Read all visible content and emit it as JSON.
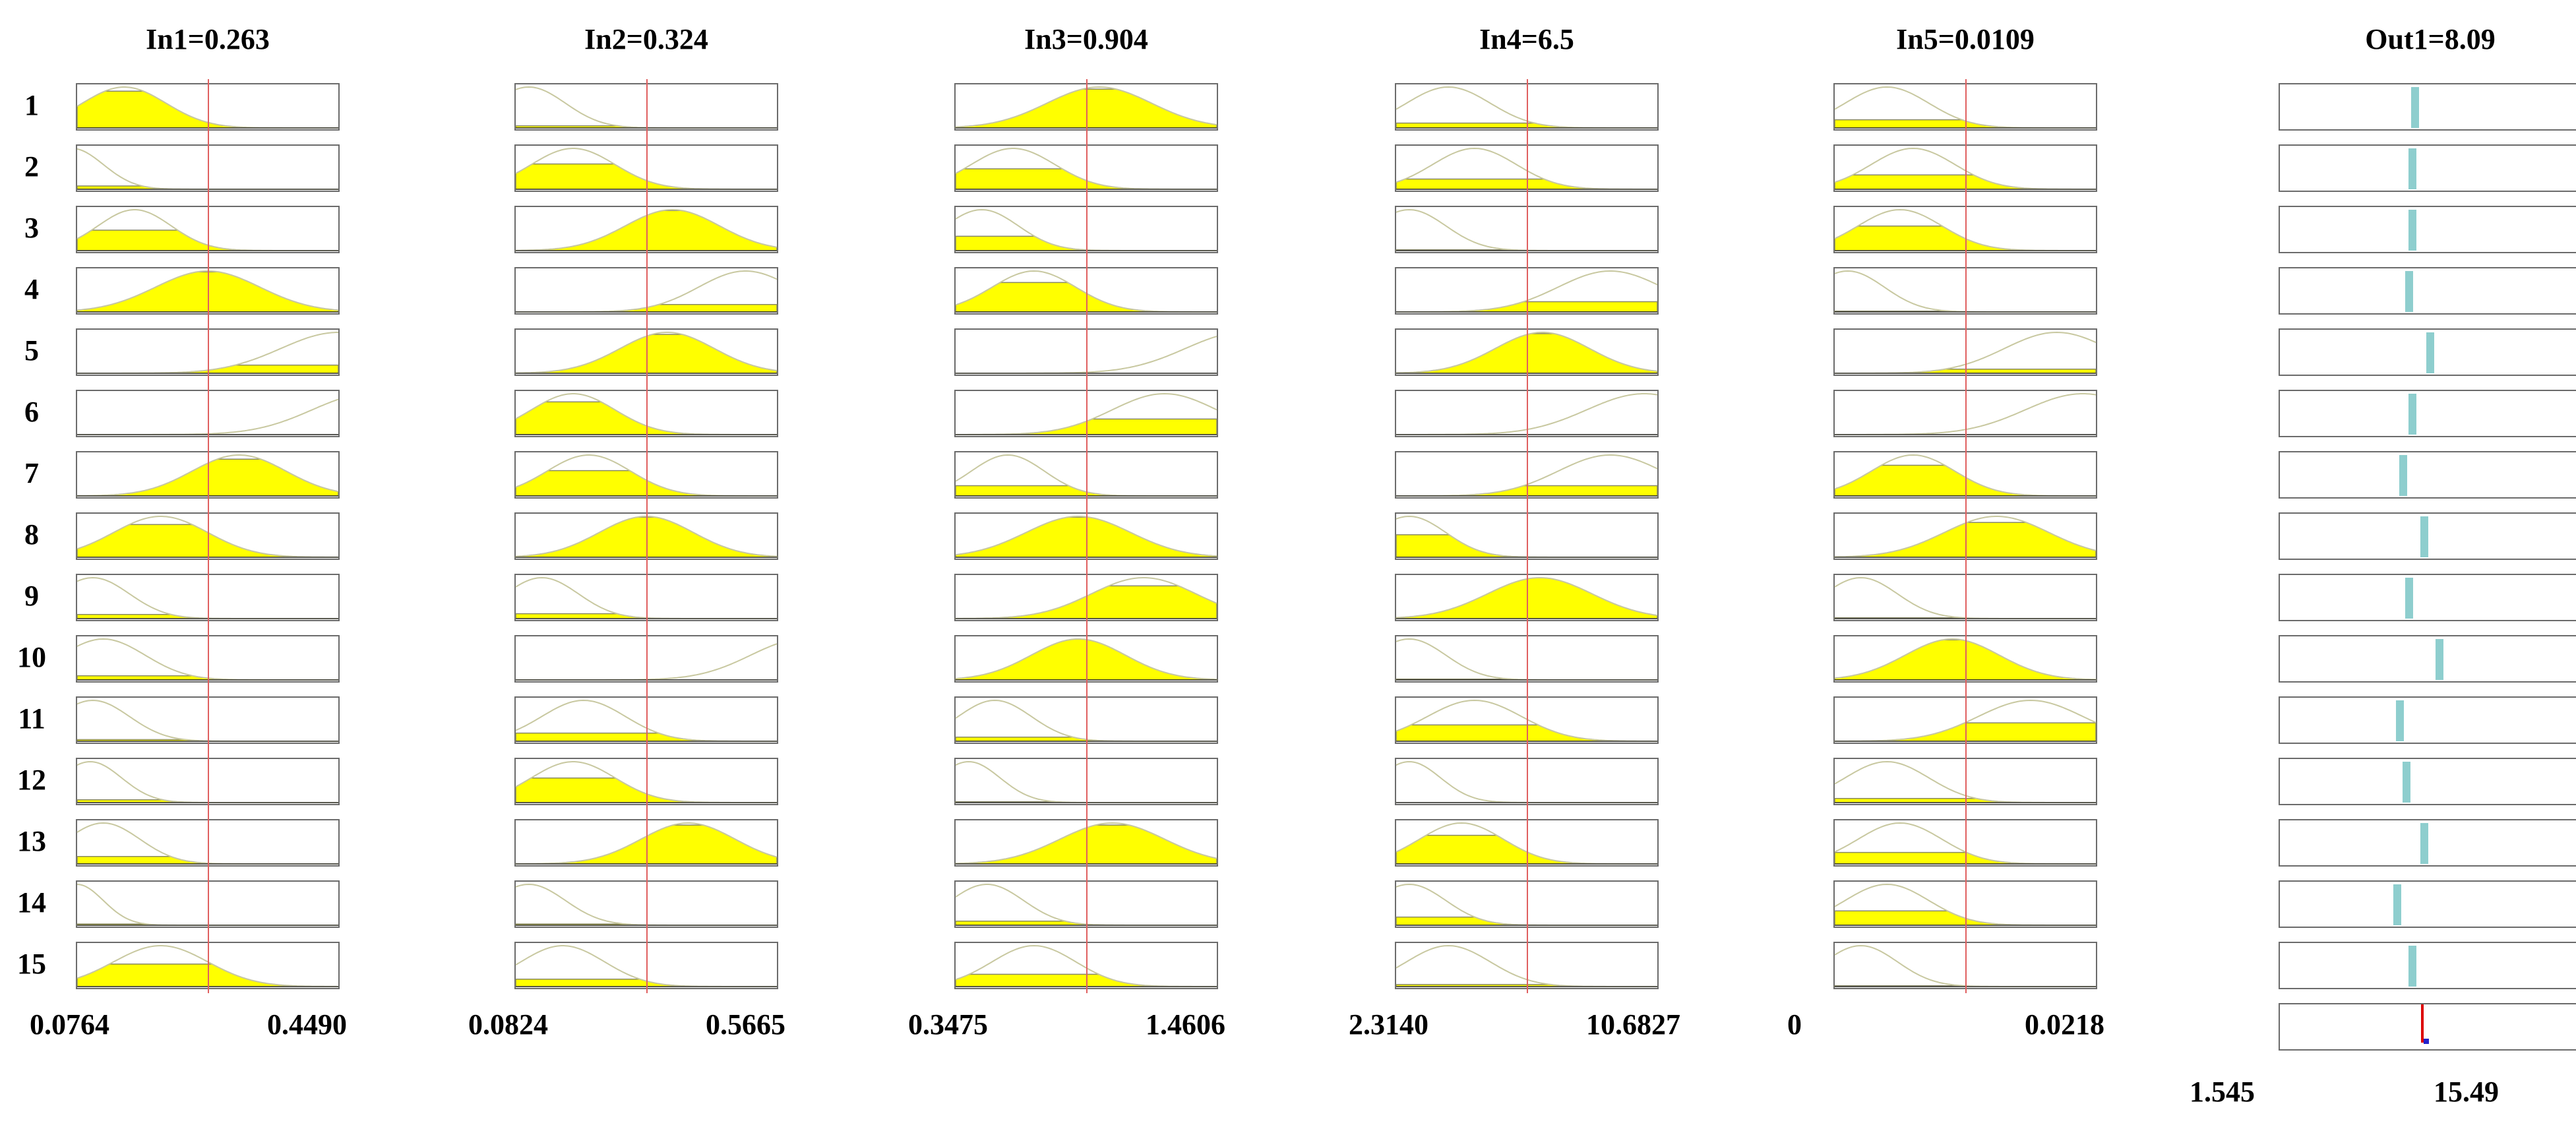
{
  "inputs": [
    {
      "title": "In1=0.263",
      "min_label": "0.0764",
      "max_label": "0.4490",
      "value_fraction": 0.5,
      "rows": [
        {
          "mf": [
            0.18,
            0.16
          ],
          "fire": 0.9
        },
        {
          "mf": [
            -0.02,
            0.12
          ],
          "fire": 0.08
        },
        {
          "mf": [
            0.22,
            0.14
          ],
          "fire": 0.5
        },
        {
          "mf": [
            0.5,
            0.2
          ],
          "fire": 0.98
        },
        {
          "mf": [
            1.0,
            0.22
          ],
          "fire": 0.2
        },
        {
          "mf": [
            1.12,
            0.22
          ],
          "fire": 0.0
        },
        {
          "mf": [
            0.62,
            0.18
          ],
          "fire": 0.9
        },
        {
          "mf": [
            0.32,
            0.18
          ],
          "fire": 0.8
        },
        {
          "mf": [
            0.06,
            0.14
          ],
          "fire": 0.1
        },
        {
          "mf": [
            0.1,
            0.16
          ],
          "fire": 0.1
        },
        {
          "mf": [
            0.06,
            0.14
          ],
          "fire": 0.04
        },
        {
          "mf": [
            0.05,
            0.12
          ],
          "fire": 0.07
        },
        {
          "mf": [
            0.1,
            0.14
          ],
          "fire": 0.18
        },
        {
          "mf": [
            0.0,
            0.1
          ],
          "fire": 0.03
        },
        {
          "mf": [
            0.32,
            0.18
          ],
          "fire": 0.55
        }
      ]
    },
    {
      "title": "In2=0.324",
      "min_label": "0.0824",
      "max_label": "0.5665",
      "value_fraction": 0.5,
      "rows": [
        {
          "mf": [
            0.05,
            0.14
          ],
          "fire": 0.05
        },
        {
          "mf": [
            0.22,
            0.16
          ],
          "fire": 0.62
        },
        {
          "mf": [
            0.6,
            0.18
          ],
          "fire": 0.98
        },
        {
          "mf": [
            0.88,
            0.18
          ],
          "fire": 0.18
        },
        {
          "mf": [
            0.58,
            0.18
          ],
          "fire": 0.95
        },
        {
          "mf": [
            0.22,
            0.16
          ],
          "fire": 0.8
        },
        {
          "mf": [
            0.28,
            0.16
          ],
          "fire": 0.62
        },
        {
          "mf": [
            0.5,
            0.18
          ],
          "fire": 0.98
        },
        {
          "mf": [
            0.1,
            0.14
          ],
          "fire": 0.12
        },
        {
          "mf": [
            1.1,
            0.2
          ],
          "fire": 0.0
        },
        {
          "mf": [
            0.26,
            0.16
          ],
          "fire": 0.2
        },
        {
          "mf": [
            0.22,
            0.16
          ],
          "fire": 0.6
        },
        {
          "mf": [
            0.66,
            0.18
          ],
          "fire": 0.95
        },
        {
          "mf": [
            0.05,
            0.14
          ],
          "fire": 0.03
        },
        {
          "mf": [
            0.18,
            0.16
          ],
          "fire": 0.18
        }
      ]
    },
    {
      "title": "In3=0.904",
      "min_label": "0.3475",
      "max_label": "1.4606",
      "value_fraction": 0.5,
      "rows": [
        {
          "mf": [
            0.55,
            0.2
          ],
          "fire": 0.95
        },
        {
          "mf": [
            0.22,
            0.16
          ],
          "fire": 0.5
        },
        {
          "mf": [
            0.1,
            0.14
          ],
          "fire": 0.35
        },
        {
          "mf": [
            0.3,
            0.16
          ],
          "fire": 0.72
        },
        {
          "mf": [
            1.1,
            0.22
          ],
          "fire": 0.0
        },
        {
          "mf": [
            0.8,
            0.2
          ],
          "fire": 0.38
        },
        {
          "mf": [
            0.2,
            0.14
          ],
          "fire": 0.25
        },
        {
          "mf": [
            0.47,
            0.2
          ],
          "fire": 0.98
        },
        {
          "mf": [
            0.72,
            0.2
          ],
          "fire": 0.8
        },
        {
          "mf": [
            0.47,
            0.18
          ],
          "fire": 1.0
        },
        {
          "mf": [
            0.15,
            0.14
          ],
          "fire": 0.1
        },
        {
          "mf": [
            0.05,
            0.12
          ],
          "fire": 0.02
        },
        {
          "mf": [
            0.6,
            0.2
          ],
          "fire": 0.95
        },
        {
          "mf": [
            0.12,
            0.14
          ],
          "fire": 0.1
        },
        {
          "mf": [
            0.3,
            0.16
          ],
          "fire": 0.3
        }
      ]
    },
    {
      "title": "In4=6.5",
      "min_label": "2.3140",
      "max_label": "10.6827",
      "value_fraction": 0.5,
      "rows": [
        {
          "mf": [
            0.2,
            0.16
          ],
          "fire": 0.12
        },
        {
          "mf": [
            0.3,
            0.16
          ],
          "fire": 0.25
        },
        {
          "mf": [
            0.05,
            0.14
          ],
          "fire": 0.02
        },
        {
          "mf": [
            0.82,
            0.2
          ],
          "fire": 0.25
        },
        {
          "mf": [
            0.56,
            0.18
          ],
          "fire": 0.97
        },
        {
          "mf": [
            0.95,
            0.22
          ],
          "fire": 0.0
        },
        {
          "mf": [
            0.82,
            0.2
          ],
          "fire": 0.25
        },
        {
          "mf": [
            0.05,
            0.14
          ],
          "fire": 0.55
        },
        {
          "mf": [
            0.55,
            0.2
          ],
          "fire": 1.0
        },
        {
          "mf": [
            0.05,
            0.14
          ],
          "fire": 0.02
        },
        {
          "mf": [
            0.3,
            0.18
          ],
          "fire": 0.4
        },
        {
          "mf": [
            0.05,
            0.12
          ],
          "fire": 0.0
        },
        {
          "mf": [
            0.25,
            0.16
          ],
          "fire": 0.7
        },
        {
          "mf": [
            0.05,
            0.14
          ],
          "fire": 0.2
        },
        {
          "mf": [
            0.2,
            0.16
          ],
          "fire": 0.05
        }
      ]
    },
    {
      "title": "In5=0.0109",
      "min_label": "0",
      "max_label": "0.0218",
      "value_fraction": 0.5,
      "rows": [
        {
          "mf": [
            0.2,
            0.16
          ],
          "fire": 0.2
        },
        {
          "mf": [
            0.3,
            0.16
          ],
          "fire": 0.35
        },
        {
          "mf": [
            0.25,
            0.16
          ],
          "fire": 0.6
        },
        {
          "mf": [
            0.05,
            0.14
          ],
          "fire": 0.02
        },
        {
          "mf": [
            0.85,
            0.2
          ],
          "fire": 0.1
        },
        {
          "mf": [
            0.95,
            0.22
          ],
          "fire": 0.0
        },
        {
          "mf": [
            0.3,
            0.16
          ],
          "fire": 0.75
        },
        {
          "mf": [
            0.62,
            0.2
          ],
          "fire": 0.85
        },
        {
          "mf": [
            0.1,
            0.14
          ],
          "fire": 0.02
        },
        {
          "mf": [
            0.45,
            0.18
          ],
          "fire": 0.98
        },
        {
          "mf": [
            0.75,
            0.2
          ],
          "fire": 0.45
        },
        {
          "mf": [
            0.2,
            0.16
          ],
          "fire": 0.1
        },
        {
          "mf": [
            0.25,
            0.16
          ],
          "fire": 0.28
        },
        {
          "mf": [
            0.2,
            0.16
          ],
          "fire": 0.35
        },
        {
          "mf": [
            0.1,
            0.14
          ],
          "fire": 0.02
        }
      ]
    }
  ],
  "output": {
    "title": "Out1=8.09",
    "min_label": "1.545",
    "max_label": "15.49",
    "value_fraction": 0.47,
    "bar_positions": [
      0.45,
      0.44,
      0.44,
      0.43,
      0.5,
      0.44,
      0.41,
      0.48,
      0.43,
      0.53,
      0.4,
      0.42,
      0.48,
      0.39,
      0.44
    ]
  },
  "row_labels": [
    "1",
    "2",
    "3",
    "4",
    "5",
    "6",
    "7",
    "8",
    "9",
    "10",
    "11",
    "12",
    "13",
    "14",
    "15"
  ],
  "colors": {
    "fill": "#ffff00",
    "curve": "#c8c8a0",
    "edge": "#888866",
    "line": "#e06060",
    "bar": "#8ecece",
    "out_line": "#dd0000",
    "out_mark": "#2222cc"
  }
}
